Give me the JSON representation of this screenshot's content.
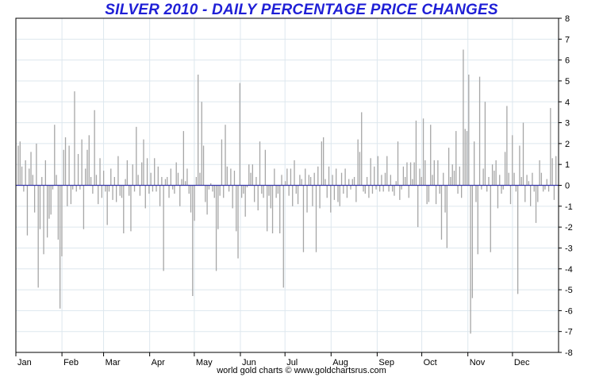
{
  "chart_data": {
    "type": "bar",
    "title": "SILVER 2010 - DAILY PERCENTAGE PRICE CHANGES",
    "xlabel": "",
    "ylabel": "",
    "ylim": [
      -8,
      8
    ],
    "y_ticks": [
      8,
      7,
      6,
      5,
      4,
      3,
      2,
      1,
      0,
      -1,
      -2,
      -3,
      -4,
      -5,
      -6,
      -7,
      -8
    ],
    "y_axis_side": "right",
    "months": [
      "Jan",
      "Feb",
      "Mar",
      "Apr",
      "May",
      "Jun",
      "Jul",
      "Aug",
      "Sep",
      "Oct",
      "Nov",
      "Dec"
    ],
    "grid": true,
    "bar_color": "#a6a6a6",
    "zero_line_color": "#3333aa",
    "title_color": "#1f1fd6",
    "series": [
      {
        "values": [
          1.9,
          2.1,
          0.9,
          -0.3,
          1.2,
          -2.4,
          0.8,
          1.6,
          0.5,
          -1.3,
          2.0,
          -4.9,
          -2.1,
          0.4,
          -3.3,
          1.2,
          -2.5,
          -1.6,
          -1.4,
          -0.2,
          2.9,
          0.5,
          -2.6,
          -5.9,
          -3.4,
          1.7,
          2.3,
          -1.0,
          1.9,
          -0.9,
          -0.2,
          4.5,
          -0.3,
          1.5,
          -0.2,
          2.2,
          -2.1,
          0.8,
          1.7,
          2.4,
          0.4,
          -0.4,
          3.6,
          0.5,
          -0.9,
          1.3,
          -0.6,
          0.7,
          -0.3,
          -1.9,
          -0.3,
          0.8,
          -0.7,
          0.4,
          -0.8,
          1.4,
          -0.5,
          -0.6,
          -2.3,
          0.3,
          1.2,
          -0.5,
          -2.2,
          1.0,
          -0.3,
          2.8,
          0.5,
          -0.5,
          1.1,
          2.2,
          -1.1,
          1.3,
          -0.4,
          0.6,
          -0.3,
          1.3,
          -0.3,
          0.9,
          -1.0,
          0.4,
          -4.1,
          0.3,
          0.4,
          -0.6,
          0.8,
          -0.2,
          -0.4,
          1.1,
          0.6,
          -1.0,
          0.3,
          2.6,
          0.2,
          0.8,
          -0.4,
          -1.3,
          -5.3,
          -1.7,
          0.4,
          5.3,
          0.6,
          4.0,
          1.9,
          -0.8,
          -1.4,
          -0.2,
          0.1,
          -0.3,
          -0.6,
          -4.1,
          -2.1,
          -0.5,
          2.2,
          -0.6,
          2.9,
          0.9,
          -0.3,
          0.8,
          -1.1,
          0.7,
          -2.2,
          -3.5,
          4.9,
          -0.6,
          -0.4,
          -1.5,
          -0.1,
          1.0,
          0.6,
          1.0,
          -0.8,
          0.4,
          -1.2,
          2.1,
          -0.4,
          -0.6,
          1.7,
          -2.2,
          -0.5,
          -1.1,
          -2.3,
          0.8,
          -0.6,
          -0.4,
          -2.3,
          0.5,
          -4.9,
          0.2,
          0.8,
          -0.5,
          0.8,
          -1.0,
          1.2,
          -0.4,
          -0.9,
          0.5,
          0.3,
          -3.2,
          0.8,
          -1.3,
          0.5,
          0.4,
          -1.0,
          0.6,
          -3.2,
          0.9,
          -1.1,
          2.1,
          2.3,
          0.3,
          -0.6,
          0.9,
          -1.3,
          0.5,
          -0.7,
          0.8,
          -0.8,
          -1.0,
          0.6,
          -0.4,
          0.8,
          -0.6,
          0.3,
          -0.2,
          0.3,
          0.4,
          -0.8,
          2.2,
          1.6,
          3.5,
          -0.3,
          -0.4,
          0.4,
          -0.6,
          1.3,
          -0.4,
          0.9,
          -0.2,
          1.4,
          -0.3,
          0.5,
          -0.3,
          0.6,
          1.4,
          -0.3,
          0.5,
          -0.3,
          -0.5,
          0.2,
          2.1,
          -0.7,
          -0.2,
          0.9,
          0.4,
          1.1,
          -0.6,
          1.1,
          0.3,
          1.1,
          3.1,
          -2.0,
          0.8,
          0.4,
          3.2,
          1.2,
          -0.9,
          -0.8,
          2.9,
          0.5,
          1.2,
          -0.9,
          1.2,
          -0.4,
          -2.6,
          0.6,
          -1.3,
          -3.0,
          1.8,
          0.4,
          1.0,
          0.7,
          2.6,
          -0.4,
          0.9,
          -0.6,
          6.5,
          2.7,
          2.6,
          5.3,
          -7.1,
          -5.4,
          2.1,
          -0.8,
          -3.3,
          5.2,
          -0.2,
          0.8,
          4.0,
          -0.3,
          0.4,
          -3.2,
          1.0,
          0.7,
          1.2,
          -1.1,
          0.5,
          -0.4,
          -0.2,
          1.6,
          3.8,
          0.6,
          -0.9,
          2.4,
          0.6,
          -0.3,
          -5.2,
          1.9,
          0.4,
          3.0,
          -0.8,
          0.5,
          0.2,
          -1.0,
          0.6,
          -0.3,
          -1.8,
          -0.8,
          1.2,
          0.6,
          -0.3,
          -0.2,
          0.3,
          -0.3,
          3.7,
          1.3,
          -0.7,
          1.4
        ]
      }
    ]
  },
  "footer": {
    "credit": "world gold charts © www.goldchartsrus.com"
  }
}
